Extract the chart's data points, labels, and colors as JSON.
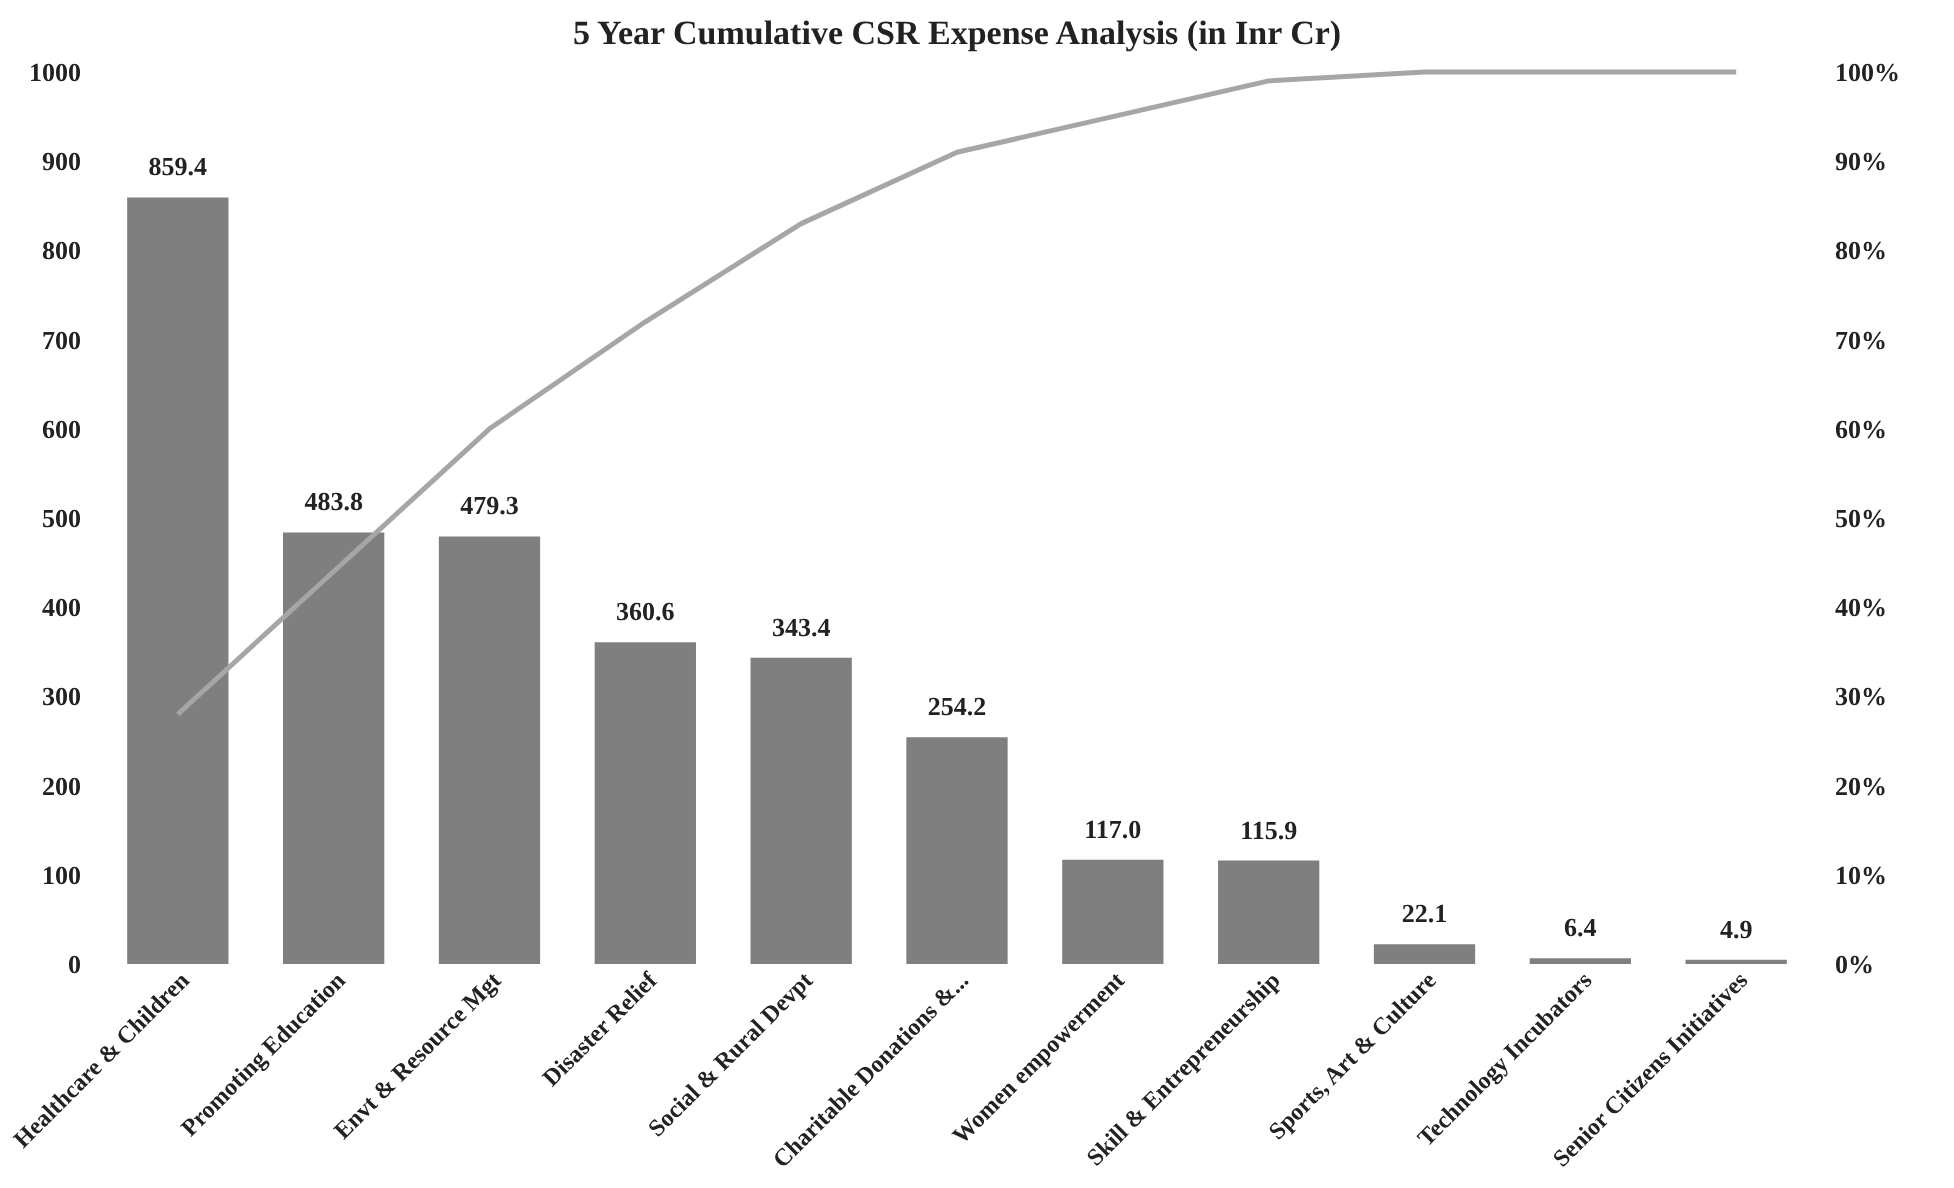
{
  "chart_data": {
    "type": "bar",
    "title": "5 Year Cumulative CSR Expense Analysis (in Inr Cr)",
    "categories": [
      "Healthcare & Children",
      "Promoting Education",
      "Envt & Resource Mgt",
      "Disaster Relief",
      "Social & Rural Devpt",
      "Charitable Donations &...",
      "Women empowerment",
      "Skill & Entrepreneurship",
      "Sports, Art & Culture",
      "Technology Incubators",
      "Senior Citizens Initiatives"
    ],
    "series": [
      {
        "color": "#7f7f7f",
        "values": [
          859.4,
          483.8,
          479.3,
          360.6,
          343.4,
          254.2,
          117.0,
          115.9,
          22.1,
          6.4,
          4.9
        ],
        "value_labels": [
          "859.4",
          "483.8",
          "479.3",
          "360.6",
          "343.4",
          "254.2",
          "117.0",
          "115.9",
          "22.1",
          "6.4",
          "4.9"
        ]
      },
      {
        "type": "line",
        "axis": "y2",
        "color": "#a6a6a6",
        "values": [
          28,
          44,
          60,
          72,
          83,
          91,
          95,
          99,
          100,
          100,
          100
        ]
      }
    ],
    "ylim": [
      0,
      1000
    ],
    "yticks": [
      0,
      100,
      200,
      300,
      400,
      500,
      600,
      700,
      800,
      900,
      1000
    ],
    "y2lim": [
      0,
      100
    ],
    "y2ticks": [
      {
        "value": 0,
        "label": "0%"
      },
      {
        "value": 10,
        "label": "10%"
      },
      {
        "value": 20,
        "label": "20%"
      },
      {
        "value": 30,
        "label": "30%"
      },
      {
        "value": 40,
        "label": "40%"
      },
      {
        "value": 50,
        "label": "50%"
      },
      {
        "value": 60,
        "label": "60%"
      },
      {
        "value": 70,
        "label": "70%"
      },
      {
        "value": 80,
        "label": "80%"
      },
      {
        "value": 90,
        "label": "90%"
      },
      {
        "value": 100,
        "label": "100%"
      }
    ],
    "grid": false
  }
}
